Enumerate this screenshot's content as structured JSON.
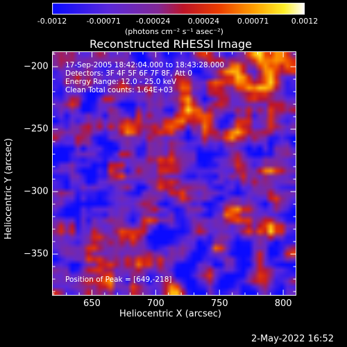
{
  "colorbar": {
    "min": -0.0012,
    "max": 0.0012,
    "tick_labels": [
      "-0.0012",
      "-0.00071",
      "-0.00024",
      "0.00024",
      "0.00071",
      "0.0012"
    ],
    "tick_values": [
      -0.0012,
      -0.00071,
      -0.00024,
      0.00024,
      0.00071,
      0.0012
    ],
    "units_label": "(photons cm⁻² s⁻¹ asec⁻²)"
  },
  "chart_data": {
    "type": "heatmap",
    "title": "Reconstructed RHESSI Image",
    "xlabel": "Heliocentric X (arcsec)",
    "ylabel": "Heliocentric Y (arcsec)",
    "xlim": [
      619,
      810
    ],
    "ylim": [
      -383,
      -188
    ],
    "x_ticks": [
      650,
      700,
      750,
      800
    ],
    "y_ticks": [
      -200,
      -250,
      -300,
      -350
    ],
    "x_tick_labels": [
      "650",
      "700",
      "750",
      "800"
    ],
    "y_tick_labels": [
      "−200",
      "−250",
      "−300",
      "−350"
    ],
    "grid": false,
    "colormap": "rhessi-blue-purple-red-yellow-white",
    "annotations": {
      "time_range": "17-Sep-2005 18:42:04.000 to 18:43:28.000",
      "detectors": "Detectors: 3F 4F 5F 6F 7F 8F, Att 0",
      "energy_range": "Energy Range: 12.0 - 25.0 keV",
      "clean": "Clean    Total counts: 1.64E+03",
      "peak_position": "Position of Peak = [649,-218]"
    }
  },
  "footer": {
    "date_stamp": "2-May-2022 16:52"
  }
}
